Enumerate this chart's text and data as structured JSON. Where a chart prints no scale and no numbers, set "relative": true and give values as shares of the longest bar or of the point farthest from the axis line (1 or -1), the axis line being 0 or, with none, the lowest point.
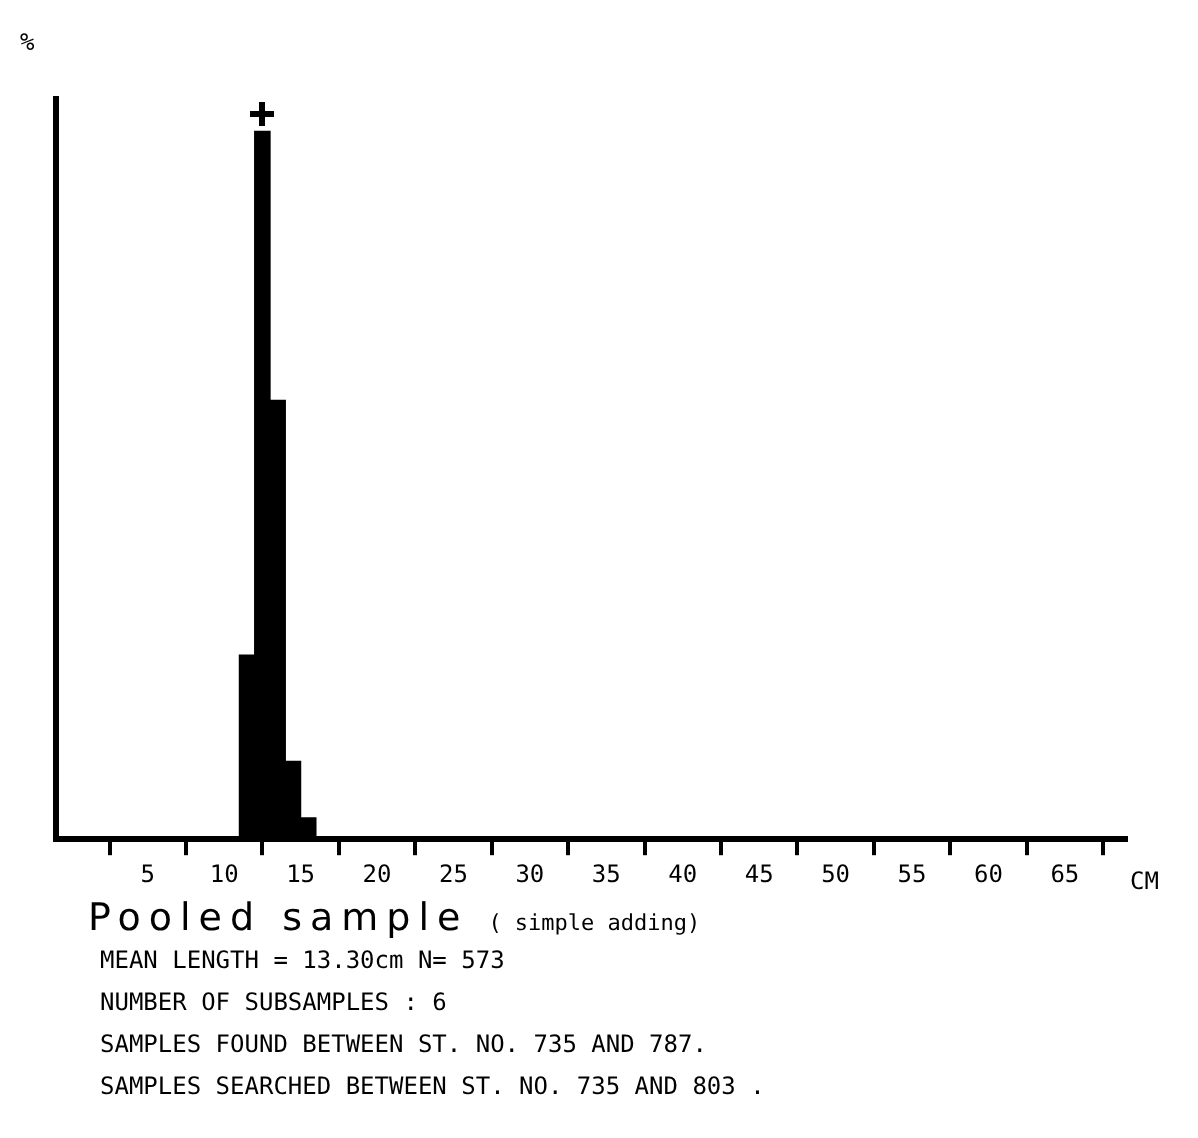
{
  "chart_data": {
    "type": "bar",
    "title": "Pooled sample",
    "subtitle": "( simple adding)",
    "xlabel": "CM",
    "ylabel": "%",
    "x": [
      11.5,
      12.5,
      13.5,
      14.5,
      15.5
    ],
    "values": [
      0.26,
      1,
      0.62,
      0.11,
      0.03
    ],
    "color": "#000000",
    "relative": true,
    "xlim": [
      -1,
      69
    ],
    "xticks": [
      5,
      10,
      15,
      20,
      25,
      30,
      35,
      40,
      45,
      50,
      55,
      60,
      65
    ],
    "grid": false,
    "legend": false,
    "annotations": [
      "MEAN LENGTH = 13.30cm  N=  573",
      "NUMBER OF SUBSAMPLES :  6",
      "SAMPLES FOUND BETWEEN ST. NO. 735 AND  787.",
      "SAMPLES SEARCHED BETWEEN ST. NO. 735 AND  803 ."
    ]
  }
}
